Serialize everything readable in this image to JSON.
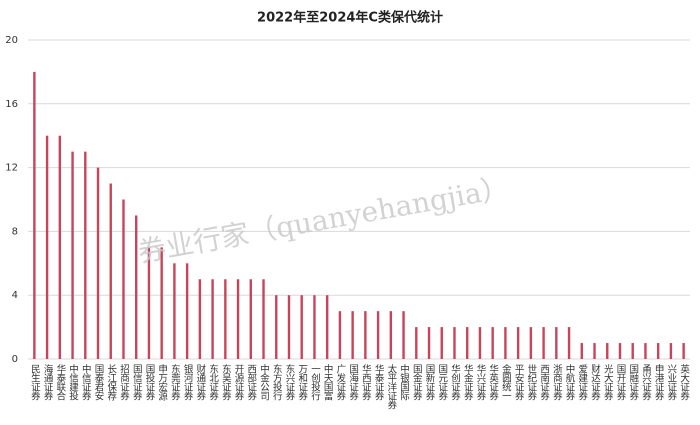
{
  "chart_data": {
    "type": "bar",
    "title": "2022年至2024年C类保代统计",
    "watermark": "券业行家（quanyehangjia）",
    "categories": [
      "民生证券",
      "海通证券",
      "华泰联合",
      "中信建投",
      "中信证券",
      "国泰君安",
      "长江保荐",
      "招商证券",
      "国信证券",
      "国投证券",
      "申万宏源",
      "东莞证券",
      "银河证券",
      "财通证券",
      "东北证券",
      "东吴证券",
      "开源证券",
      "西部证券",
      "中金公司",
      "东方投行",
      "东兴证券",
      "万和证券",
      "一创投行",
      "中天国富",
      "广发证券",
      "国海证券",
      "华西证券",
      "华泰证券",
      "太平洋证券",
      "中银国际",
      "国金证券",
      "国新证券",
      "国元证券",
      "华创证券",
      "华金证券",
      "华兴证券",
      "华英证券",
      "金圆统一",
      "平安证券",
      "世纪证券",
      "西南证券",
      "浙商证券",
      "中航证券",
      "爱建证券",
      "财达证券",
      "光大证券",
      "国开证券",
      "国融证券",
      "甬兴证券",
      "申港证券",
      "兴业证券",
      "英大证券"
    ],
    "values": [
      18,
      14,
      14,
      13,
      13,
      12,
      11,
      10,
      9,
      7,
      7,
      6,
      6,
      5,
      5,
      5,
      5,
      5,
      5,
      4,
      4,
      4,
      4,
      4,
      3,
      3,
      3,
      3,
      3,
      3,
      2,
      2,
      2,
      2,
      2,
      2,
      2,
      2,
      2,
      2,
      2,
      2,
      2,
      1,
      1,
      1,
      1,
      1,
      1,
      1,
      1,
      1
    ],
    "color": "#c9445a",
    "ylim": [
      0,
      20
    ],
    "yticks": [
      0,
      4,
      8,
      12,
      16,
      20
    ],
    "grid": true
  }
}
